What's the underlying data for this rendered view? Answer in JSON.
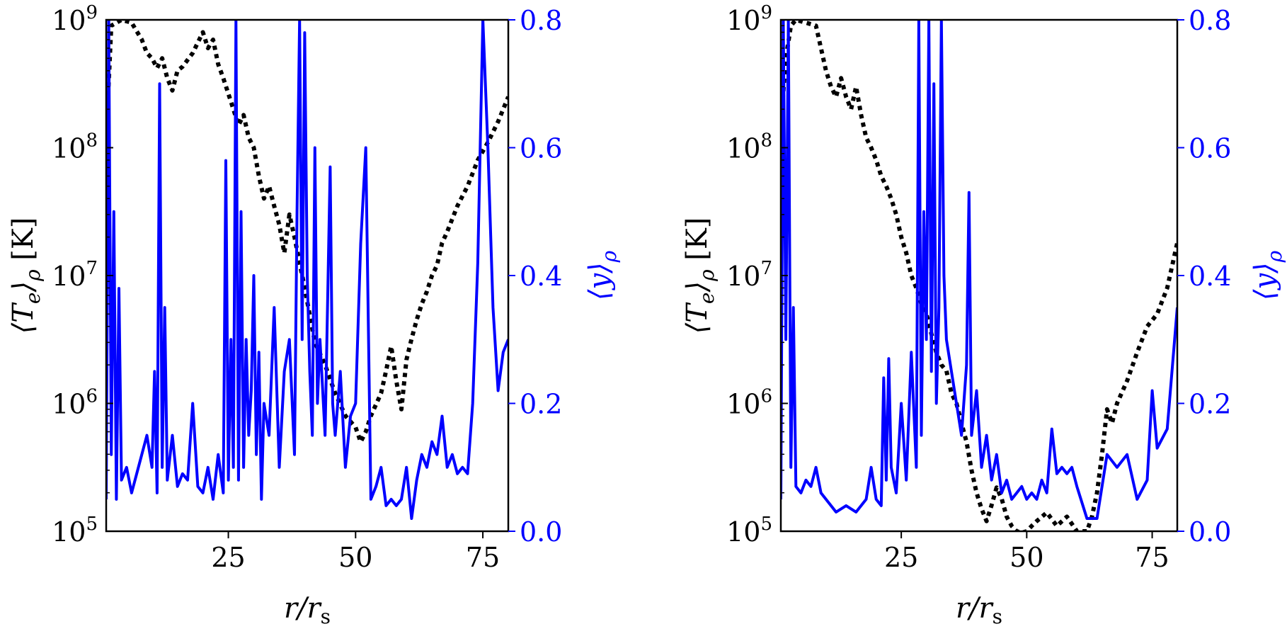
{
  "figure": {
    "panels": [
      "left",
      "right"
    ]
  },
  "chart_data": [
    {
      "type": "line",
      "panel": "left",
      "xlabel": "r/r_s",
      "ylabel_left": "⟨T_e⟩_ρ [K]",
      "ylabel_right": "⟨y⟩_ρ",
      "xlim": [
        1,
        80
      ],
      "ylim_left": [
        100000,
        1000000000
      ],
      "yscale_left": "log",
      "ylim_right": [
        0.0,
        0.8
      ],
      "x_ticks": [
        "25",
        "50",
        "75"
      ],
      "y_left_ticks": [
        "10^9",
        "10^8",
        "10^7",
        "10^6",
        "10^5"
      ],
      "y_right_ticks": [
        "0.8",
        "0.6",
        "0.4",
        "0.2",
        "0.0"
      ],
      "colors": {
        "temperature": "#000000",
        "y": "#0000ff"
      },
      "series": [
        {
          "axis": "left",
          "style": "dotted",
          "x": [
            1,
            2,
            4,
            6,
            8,
            9,
            10,
            11,
            12,
            13,
            14,
            15,
            16,
            18,
            20,
            21,
            22,
            23,
            24,
            26,
            27,
            28,
            29,
            30,
            31,
            32,
            33,
            34,
            35,
            36,
            37,
            38,
            40,
            42,
            44,
            46,
            48,
            50,
            51,
            52,
            53,
            55,
            56,
            57,
            58,
            59,
            60,
            61,
            62,
            63,
            64,
            65,
            66,
            67,
            68,
            70,
            72,
            74,
            76,
            78,
            80
          ],
          "y": [
            120000000,
            900000000,
            1000000000,
            950000000,
            700000000,
            550000000,
            500000000,
            420000000,
            500000000,
            350000000,
            280000000,
            400000000,
            430000000,
            550000000,
            800000000,
            600000000,
            700000000,
            450000000,
            350000000,
            200000000,
            150000000,
            180000000,
            120000000,
            100000000,
            60000000,
            40000000,
            50000000,
            35000000,
            25000000,
            15000000,
            30000000,
            20000000,
            8000000,
            3000000,
            2000000,
            1200000,
            800000,
            650000,
            500000,
            600000,
            800000,
            1200000,
            1800000,
            2800000,
            1500000,
            900000,
            2200000,
            3200000,
            4500000,
            6000000,
            7500000,
            10000000,
            12000000,
            18000000,
            22000000,
            35000000,
            50000000,
            80000000,
            110000000,
            160000000,
            250000000
          ]
        },
        {
          "axis": "right",
          "style": "solid",
          "x": [
            1,
            1.5,
            2,
            2.5,
            3,
            3.5,
            4,
            5,
            6,
            7,
            8,
            9,
            10,
            10.5,
            11,
            11.5,
            12,
            12.5,
            13,
            14,
            15,
            16,
            17,
            18,
            19,
            20,
            21,
            22,
            23,
            24,
            24.5,
            25,
            25.5,
            26,
            26.5,
            27,
            27.5,
            28,
            28.5,
            29,
            29.5,
            30,
            30.5,
            31,
            31.5,
            32,
            33,
            34,
            35,
            36,
            37,
            38,
            38.5,
            39,
            39.5,
            40,
            40.5,
            41,
            41.5,
            42,
            42.5,
            43,
            44,
            45,
            45.5,
            46,
            47,
            48,
            49,
            50,
            51,
            52,
            53,
            54,
            55,
            56,
            57,
            58,
            59,
            60,
            61,
            62,
            63,
            64,
            65,
            66,
            67,
            68,
            69,
            70,
            71,
            72,
            73,
            74,
            75,
            76,
            77,
            78,
            79,
            80
          ],
          "y": [
            0.05,
            0.8,
            0.12,
            0.5,
            0.05,
            0.38,
            0.08,
            0.1,
            0.06,
            0.09,
            0.12,
            0.15,
            0.1,
            0.25,
            0.06,
            0.7,
            0.1,
            0.35,
            0.08,
            0.15,
            0.07,
            0.09,
            0.08,
            0.2,
            0.07,
            0.06,
            0.1,
            0.05,
            0.12,
            0.06,
            0.58,
            0.08,
            0.3,
            0.1,
            0.8,
            0.08,
            0.5,
            0.1,
            0.3,
            0.15,
            0.22,
            0.4,
            0.12,
            0.28,
            0.05,
            0.2,
            0.15,
            0.35,
            0.1,
            0.25,
            0.3,
            0.12,
            0.5,
            0.8,
            0.3,
            0.78,
            0.4,
            0.25,
            0.15,
            0.6,
            0.2,
            0.3,
            0.15,
            0.57,
            0.2,
            0.15,
            0.25,
            0.1,
            0.18,
            0.2,
            0.45,
            0.6,
            0.05,
            0.07,
            0.1,
            0.04,
            0.05,
            0.04,
            0.05,
            0.1,
            0.02,
            0.08,
            0.12,
            0.1,
            0.14,
            0.12,
            0.18,
            0.1,
            0.12,
            0.09,
            0.1,
            0.09,
            0.2,
            0.42,
            0.8,
            0.6,
            0.35,
            0.22,
            0.28,
            0.3
          ]
        }
      ]
    },
    {
      "type": "line",
      "panel": "right",
      "xlabel": "r/r_s",
      "ylabel_left": "⟨T_e⟩_ρ [K]",
      "ylabel_right": "⟨y⟩_ρ",
      "xlim": [
        1,
        80
      ],
      "ylim_left": [
        100000,
        1000000000
      ],
      "yscale_left": "log",
      "ylim_right": [
        0.0,
        0.8
      ],
      "x_ticks": [
        "25",
        "50",
        "75"
      ],
      "y_left_ticks": [
        "10^9",
        "10^8",
        "10^7",
        "10^6",
        "10^5"
      ],
      "y_right_ticks": [
        "0.8",
        "0.6",
        "0.4",
        "0.2",
        "0.0"
      ],
      "colors": {
        "temperature": "#000000",
        "y": "#0000ff"
      },
      "series": [
        {
          "axis": "left",
          "style": "dotted",
          "x": [
            1,
            2,
            3,
            4,
            6,
            8,
            9,
            10,
            11,
            12,
            13,
            14,
            15,
            16,
            17,
            18,
            19,
            20,
            21,
            22,
            23,
            24,
            25,
            26,
            27,
            28,
            29,
            30,
            31,
            32,
            33,
            34,
            35,
            36,
            37,
            38,
            39,
            40,
            41,
            42,
            43,
            44,
            45,
            46,
            47,
            48,
            49,
            50,
            51,
            52,
            54,
            56,
            58,
            60,
            62,
            63,
            64,
            65,
            66,
            67,
            68,
            70,
            72,
            74,
            76,
            78,
            80
          ],
          "y": [
            150000000,
            500000000,
            900000000,
            1000000000,
            950000000,
            900000000,
            600000000,
            400000000,
            300000000,
            250000000,
            350000000,
            250000000,
            200000000,
            300000000,
            180000000,
            120000000,
            100000000,
            80000000,
            60000000,
            50000000,
            40000000,
            30000000,
            20000000,
            15000000,
            10000000,
            8000000,
            6000000,
            5000000,
            3500000,
            2500000,
            2000000,
            1800000,
            1200000,
            1000000,
            700000,
            500000,
            300000,
            200000,
            150000,
            120000,
            160000,
            220000,
            180000,
            130000,
            110000,
            100000,
            90000,
            100000,
            110000,
            120000,
            140000,
            110000,
            130000,
            100000,
            100000,
            130000,
            200000,
            400000,
            900000,
            700000,
            1000000,
            1500000,
            2500000,
            4000000,
            5000000,
            8000000,
            18000000
          ]
        },
        {
          "axis": "right",
          "style": "solid",
          "x": [
            1,
            1.5,
            2,
            2.5,
            3,
            3.5,
            4,
            5,
            6,
            7,
            8,
            9,
            10,
            12,
            14,
            16,
            18,
            19,
            20,
            21,
            21.5,
            22,
            22.5,
            23,
            24,
            25,
            26,
            27,
            28,
            28.5,
            29,
            29.5,
            30,
            30.5,
            31,
            31.5,
            32,
            32.5,
            33,
            33.5,
            34,
            35,
            36,
            37,
            38,
            38.5,
            39,
            40,
            41,
            42,
            43,
            44,
            45,
            46,
            47,
            48,
            49,
            50,
            51,
            52,
            53,
            54,
            55,
            56,
            57,
            58,
            59,
            60,
            62,
            64,
            66,
            68,
            70,
            72,
            74,
            75,
            76,
            78,
            80
          ],
          "y": [
            0.05,
            0.8,
            0.3,
            0.8,
            0.1,
            0.35,
            0.07,
            0.06,
            0.08,
            0.07,
            0.1,
            0.06,
            0.05,
            0.03,
            0.04,
            0.03,
            0.05,
            0.1,
            0.05,
            0.04,
            0.24,
            0.08,
            0.27,
            0.1,
            0.06,
            0.2,
            0.08,
            0.28,
            0.1,
            0.8,
            0.15,
            0.5,
            0.3,
            0.8,
            0.25,
            0.7,
            0.2,
            0.35,
            0.8,
            0.4,
            0.3,
            0.25,
            0.2,
            0.15,
            0.26,
            0.53,
            0.15,
            0.22,
            0.1,
            0.15,
            0.08,
            0.12,
            0.06,
            0.08,
            0.05,
            0.06,
            0.07,
            0.05,
            0.06,
            0.05,
            0.08,
            0.06,
            0.16,
            0.09,
            0.1,
            0.09,
            0.1,
            0.07,
            0.02,
            0.02,
            0.12,
            0.1,
            0.12,
            0.05,
            0.08,
            0.22,
            0.13,
            0.16,
            0.35
          ]
        }
      ]
    }
  ],
  "labels": {
    "left": {
      "y_left": "⟨T",
      "y_left_sub": "e",
      "y_left_close": "⟩",
      "y_left_sub2": "ρ",
      "y_left_unit": " [K]",
      "y_right_main": "⟨y⟩",
      "y_right_sub": "ρ",
      "x_main": "r/r",
      "x_sub": "s"
    },
    "right": {
      "y_left": "⟨T",
      "y_left_sub": "e",
      "y_left_close": "⟩",
      "y_left_sub2": "ρ",
      "y_left_unit": " [K]",
      "y_right_main": "⟨y⟩",
      "y_right_sub": "ρ",
      "x_main": "r/r",
      "x_sub": "s"
    }
  }
}
